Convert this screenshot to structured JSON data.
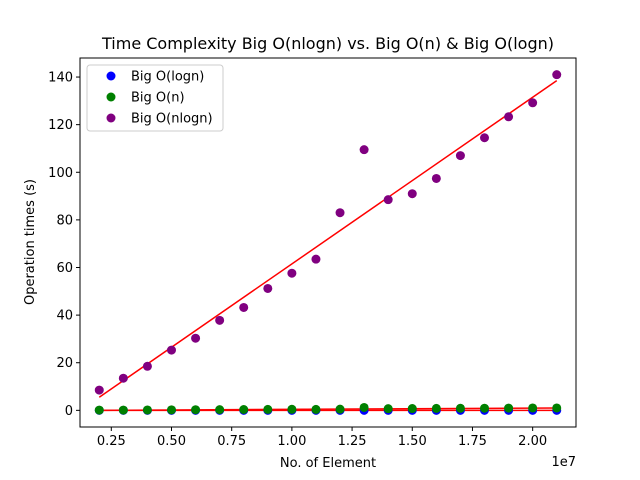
{
  "chart_data": {
    "type": "scatter",
    "title": "Time Complexity Big O(nlogn) vs. Big O(n) & Big O(logn)",
    "xlabel": "No. of Element",
    "ylabel": "Operation times (s)",
    "x_offset_label": "1e7",
    "xlim": [
      1200000,
      21800000
    ],
    "ylim": [
      -7,
      148
    ],
    "x_ticks": [
      2500000,
      5000000,
      7500000,
      10000000,
      12500000,
      15000000,
      17500000,
      20000000
    ],
    "x_tick_labels": [
      "0.25",
      "0.50",
      "0.75",
      "1.00",
      "1.25",
      "1.50",
      "1.75",
      "2.00"
    ],
    "y_ticks": [
      0,
      20,
      40,
      60,
      80,
      100,
      120,
      140
    ],
    "y_tick_labels": [
      "0",
      "20",
      "40",
      "60",
      "80",
      "100",
      "120",
      "140"
    ],
    "x": [
      2000000,
      3000000,
      4000000,
      5000000,
      6000000,
      7000000,
      8000000,
      9000000,
      10000000,
      11000000,
      12000000,
      13000000,
      14000000,
      15000000,
      16000000,
      17000000,
      18000000,
      19000000,
      20000000,
      21000000
    ],
    "legend_position": "top-left",
    "grid": false,
    "series": [
      {
        "name": "Big O(logn)",
        "color": "#0000ff",
        "values": [
          0,
          0,
          0,
          0,
          0,
          0,
          0,
          0,
          0,
          0,
          0,
          0,
          0,
          0,
          0,
          0,
          0,
          0,
          0,
          0
        ]
      },
      {
        "name": "Big O(n)",
        "color": "#008000",
        "values": [
          0.1,
          0.1,
          0.15,
          0.2,
          0.25,
          0.3,
          0.35,
          0.4,
          0.45,
          0.4,
          0.5,
          1.2,
          0.7,
          0.75,
          0.8,
          0.85,
          0.9,
          0.95,
          1.0,
          1.0
        ]
      },
      {
        "name": "Big O(nlogn)",
        "color": "#800080",
        "values": [
          8.5,
          13.5,
          18.5,
          25.3,
          30.3,
          37.8,
          43.2,
          51.2,
          57.6,
          63.5,
          83.0,
          109.5,
          88.5,
          91.0,
          97.4,
          107.0,
          114.5,
          123.3,
          129.2,
          141.0
        ]
      }
    ],
    "trend_lines": [
      {
        "color": "#ff0000",
        "from": [
          2000000,
          5.5
        ],
        "to": [
          21000000,
          138.5
        ]
      },
      {
        "color": "#ff0000",
        "from": [
          2000000,
          0.0
        ],
        "to": [
          21000000,
          1.0
        ]
      },
      {
        "color": "#ff0000",
        "from": [
          2000000,
          0.0
        ],
        "to": [
          21000000,
          0.0
        ]
      }
    ]
  }
}
